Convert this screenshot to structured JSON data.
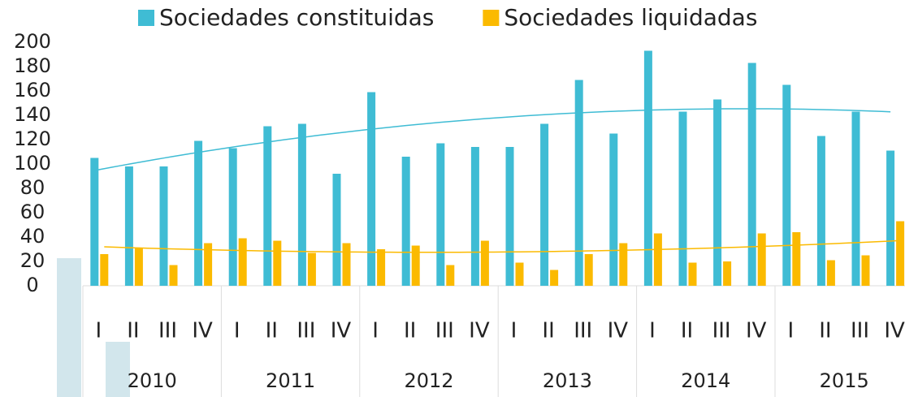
{
  "chart_data": {
    "type": "bar",
    "categories": [
      "I",
      "II",
      "III",
      "IV",
      "I",
      "II",
      "III",
      "IV",
      "I",
      "II",
      "III",
      "IV",
      "I",
      "II",
      "III",
      "IV",
      "I",
      "II",
      "III",
      "IV",
      "I",
      "II",
      "III",
      "IV"
    ],
    "years": [
      "2010",
      "2011",
      "2012",
      "2013",
      "2014",
      "2015"
    ],
    "series": [
      {
        "name": "Sociedades constituidas",
        "color": "#3fbcd4",
        "values": [
          105,
          98,
          98,
          119,
          113,
          131,
          133,
          92,
          159,
          106,
          117,
          114,
          114,
          133,
          169,
          125,
          193,
          143,
          153,
          183,
          165,
          123,
          143,
          111
        ]
      },
      {
        "name": "Sociedades liquidadas",
        "color": "#fbba00",
        "values": [
          26,
          31,
          17,
          35,
          39,
          37,
          27,
          35,
          30,
          33,
          17,
          37,
          19,
          13,
          26,
          35,
          43,
          19,
          20,
          43,
          44,
          21,
          25,
          53
        ]
      }
    ],
    "ylim": [
      0,
      200
    ],
    "yticks": [
      0,
      20,
      40,
      60,
      80,
      100,
      120,
      140,
      160,
      180,
      200
    ],
    "trendline": "polynomial"
  }
}
